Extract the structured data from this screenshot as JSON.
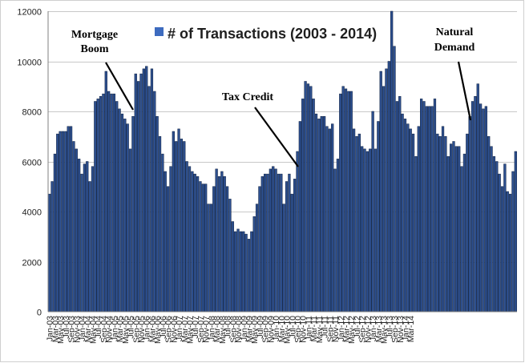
{
  "chart_data": {
    "type": "bar",
    "title": "# of Transactions (2003 - 2014)",
    "legend_label": "# of Transactions (2003 - 2014)",
    "legend_position": "top-center",
    "legend_color": "#3d6bbf",
    "bar_color": "#2d4f8e",
    "xlabel": "",
    "ylabel": "",
    "ylim": [
      0,
      12000
    ],
    "yticks": [
      0,
      2000,
      4000,
      6000,
      8000,
      10000,
      12000
    ],
    "grid": true,
    "x_tick_labels": [
      "Jan-03",
      "Mar-03",
      "May-03",
      "Jul-03",
      "Sep-03",
      "Nov-03",
      "Jan-04",
      "Mar-04",
      "May-04",
      "Jul-04",
      "Sep-04",
      "Nov-04",
      "Jan-05",
      "Mar-05",
      "May-05",
      "Jul-05",
      "Sep-05",
      "Nov-05",
      "Jan-06",
      "Mar-06",
      "May-06",
      "Jul-06",
      "Sep-06",
      "Nov-06",
      "Jan-07",
      "Mar-07",
      "May-07",
      "Jul-07",
      "Sep-07",
      "Nov-07",
      "Jan-08",
      "Mar-08",
      "May-08",
      "Jul-08",
      "Sep-08",
      "Nov-08",
      "Jan-09",
      "Mar-09",
      "May-09",
      "Jul-09",
      "Sep-09",
      "Nov-09",
      "Jan-10",
      "Mar-10",
      "May-10",
      "Jul-10",
      "Sep-10",
      "Nov-10",
      "Jan-11",
      "Mar-11",
      "May-11",
      "Jul-11",
      "Sep-11",
      "Nov-11",
      "Jan-12",
      "Mar-12",
      "May-12",
      "Jul-12",
      "Sep-12",
      "Nov-12",
      "Jan-13",
      "Mar-13",
      "May-13",
      "Jul-13",
      "Sep-13",
      "Nov-13",
      "Jan-14",
      "Mar-14"
    ],
    "values": [
      4700,
      5200,
      6300,
      7100,
      7200,
      7200,
      7200,
      7400,
      7400,
      6800,
      6500,
      6100,
      5500,
      5900,
      6000,
      5200,
      5800,
      8400,
      8500,
      8600,
      8700,
      9600,
      8800,
      8700,
      8700,
      8400,
      8100,
      7900,
      7700,
      7500,
      6500,
      7800,
      9500,
      9200,
      9500,
      9700,
      9800,
      9000,
      9700,
      8800,
      7800,
      7000,
      6300,
      5600,
      5000,
      5800,
      7200,
      6800,
      7300,
      6900,
      6800,
      6000,
      5800,
      5600,
      5500,
      5400,
      5200,
      5100,
      5100,
      4300,
      4300,
      5000,
      5700,
      5400,
      5600,
      5400,
      5000,
      4500,
      3600,
      3200,
      3300,
      3200,
      3200,
      3100,
      2900,
      3200,
      3800,
      4300,
      5000,
      5400,
      5500,
      5500,
      5700,
      5800,
      5700,
      5500,
      5500,
      4300,
      5200,
      5500,
      4700,
      5300,
      6400,
      7600,
      8500,
      9200,
      9100,
      9000,
      8500,
      7900,
      7700,
      7800,
      7800,
      7400,
      7300,
      7500,
      5700,
      6100,
      8700,
      9000,
      8900,
      8800,
      8800,
      7300,
      7000,
      7100,
      6600,
      6500,
      6400,
      6500,
      8000,
      6500,
      7600,
      9600,
      9000,
      9700,
      10000,
      12000,
      10600,
      8400,
      8600,
      7900,
      7700,
      7500,
      7300,
      7100,
      6200,
      7400,
      8500,
      8400,
      8200,
      8200,
      8200,
      8500,
      7100,
      7000,
      7400,
      7000,
      6200,
      6700,
      6800,
      6600,
      6600,
      5800,
      6300,
      7100,
      7800,
      8400,
      8600,
      9100,
      8300,
      8100,
      8200,
      7000,
      6600,
      6200,
      6000,
      5500,
      5000,
      5900,
      4800,
      4700,
      5600,
      6400
    ],
    "annotations": [
      {
        "lines": [
          "Mortgage",
          "Boom"
        ],
        "points_to": "Mar-05"
      },
      {
        "lines": [
          "Tax Credit"
        ],
        "points_to": "Jan-09"
      },
      {
        "lines": [
          "Natural",
          "Demand"
        ],
        "points_to": "Mar-13"
      }
    ]
  }
}
